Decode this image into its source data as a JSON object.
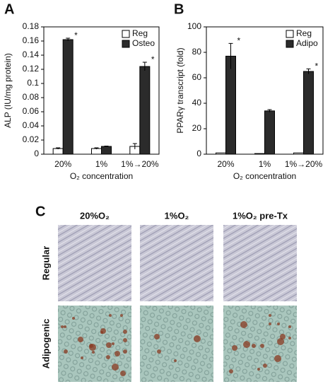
{
  "chart_data": [
    {
      "type": "bar",
      "panel_label": "A",
      "ylabel": "ALP (IU/mg protein)",
      "xlabel": "O₂ concentration",
      "categories": [
        "20%",
        "1%",
        "1%→20%"
      ],
      "series": [
        {
          "name": "Reg",
          "color": "#ffffff",
          "values": [
            0.008,
            0.008,
            0.011
          ],
          "errors": [
            0.001,
            0.001,
            0.004
          ]
        },
        {
          "name": "Osteo",
          "color": "#2b2b2b",
          "values": [
            0.162,
            0.011,
            0.124
          ],
          "errors": [
            0.002,
            0.0005,
            0.006
          ],
          "significance": [
            "*",
            null,
            "*"
          ]
        }
      ],
      "ylim": [
        0,
        0.18
      ],
      "yticks": [
        0,
        0.02,
        0.04,
        0.06,
        0.08,
        0.1,
        0.12,
        0.14,
        0.16,
        0.18
      ],
      "legend": "upper right"
    },
    {
      "type": "bar",
      "panel_label": "B",
      "ylabel": "PPARγ transcript (fold)",
      "xlabel": "O₂ concentration",
      "categories": [
        "20%",
        "1%",
        "1%→20%"
      ],
      "series": [
        {
          "name": "Reg",
          "color": "#ffffff",
          "values": [
            1,
            0.5,
            1
          ]
        },
        {
          "name": "Adipo",
          "color": "#2b2b2b",
          "values": [
            77,
            34,
            65
          ],
          "errors": [
            10,
            1,
            2
          ],
          "significance": [
            "*",
            null,
            "*"
          ]
        }
      ],
      "ylim": [
        0,
        100
      ],
      "yticks": [
        0,
        20,
        40,
        60,
        80,
        100
      ],
      "legend": "upper right"
    }
  ],
  "panel_c": {
    "panel_label": "C",
    "columns": [
      "20%O₂",
      "1%O₂",
      "1%O₂ pre-Tx"
    ],
    "rows": [
      "Regular",
      "Adipogenic"
    ]
  }
}
